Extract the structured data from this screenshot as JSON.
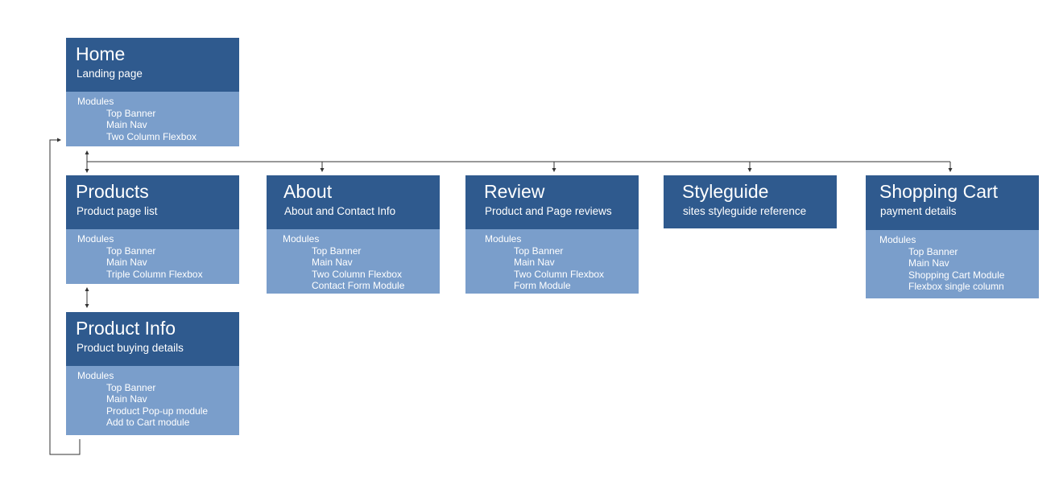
{
  "nodes": {
    "home": {
      "title": "Home",
      "subtitle": "Landing page",
      "modules_label": "Modules",
      "modules": [
        "Top Banner",
        "Main Nav",
        "Two Column Flexbox"
      ]
    },
    "products": {
      "title": "Products",
      "subtitle": "Product page list",
      "modules_label": "Modules",
      "modules": [
        "Top Banner",
        "Main Nav",
        "Triple Column Flexbox"
      ]
    },
    "product_info": {
      "title": "Product Info",
      "subtitle": "Product buying details",
      "modules_label": "Modules",
      "modules": [
        "Top Banner",
        "Main Nav",
        "Product Pop-up module",
        "Add to Cart module"
      ]
    },
    "about": {
      "title": "About",
      "subtitle": "About and Contact Info",
      "modules_label": "Modules",
      "modules": [
        "Top Banner",
        "Main Nav",
        "Two Column Flexbox",
        "Contact Form Module"
      ]
    },
    "review": {
      "title": "Review",
      "subtitle": "Product and Page reviews",
      "modules_label": "Modules",
      "modules": [
        "Top Banner",
        "Main Nav",
        "Two Column Flexbox",
        "Form Module"
      ]
    },
    "styleguide": {
      "title": "Styleguide",
      "subtitle": "sites styleguide reference"
    },
    "shopping_cart": {
      "title": "Shopping Cart",
      "subtitle": "payment details",
      "modules_label": "Modules",
      "modules": [
        "Top Banner",
        "Main Nav",
        "Shopping Cart Module",
        "Flexbox single column"
      ]
    }
  },
  "colors": {
    "header": "#2f5a8e",
    "body": "#7a9ecb",
    "text": "#ffffff",
    "connector": "#333333"
  }
}
